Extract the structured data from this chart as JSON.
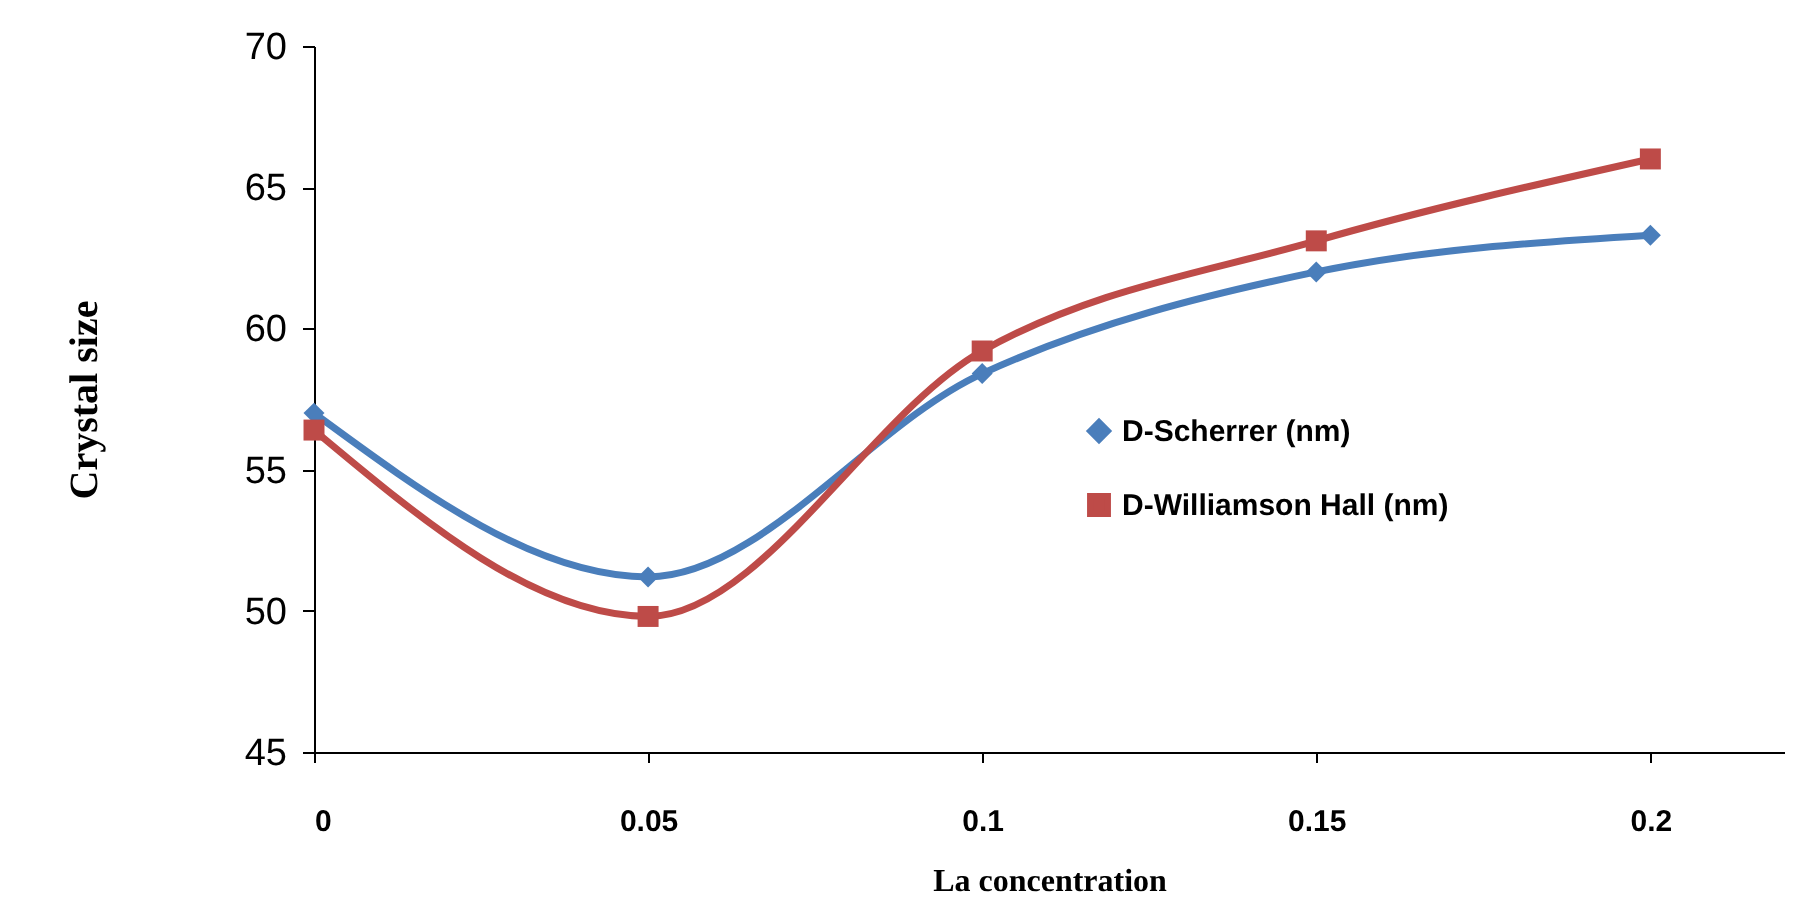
{
  "chart_data": {
    "type": "line",
    "xlabel": "La concentration",
    "ylabel": "Crystal size",
    "x": [
      0,
      0.05,
      0.1,
      0.15,
      0.2
    ],
    "xlim": [
      0,
      0.22
    ],
    "xticks": [
      0,
      0.05,
      0.1,
      0.15,
      0.2
    ],
    "ylim": [
      45,
      70
    ],
    "yticks": [
      45,
      50,
      55,
      60,
      65,
      70
    ],
    "grid": false,
    "legend": "right",
    "line_style": "solid",
    "series": [
      {
        "name": "D-Scherrer  (nm)",
        "color": "#4a7ebb",
        "marker": "diamond",
        "values": [
          57.0,
          51.2,
          58.4,
          62.0,
          63.3
        ]
      },
      {
        "name": "D-Williamson Hall (nm)",
        "color": "#be4b48",
        "marker": "square",
        "values": [
          56.4,
          49.8,
          59.2,
          63.1,
          66.0
        ]
      }
    ]
  }
}
